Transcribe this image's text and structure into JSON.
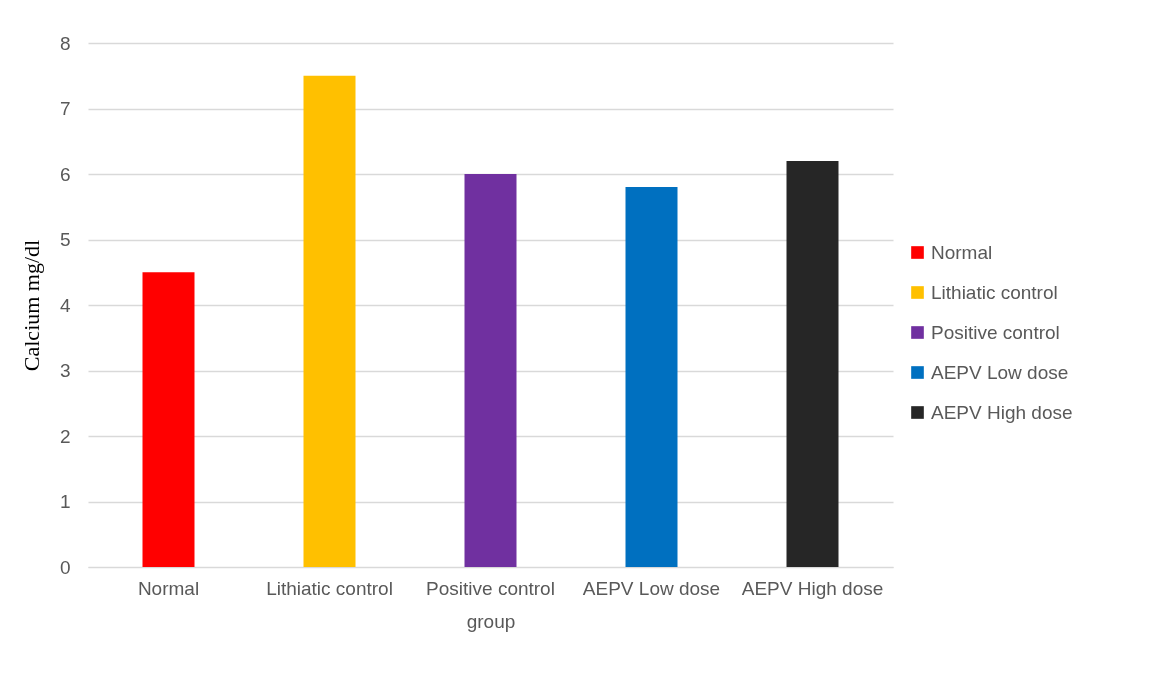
{
  "chart_data": {
    "type": "bar",
    "xlabel": "group",
    "ylabel": "Calcium mg/dl",
    "categories": [
      "Normal",
      "Lithiatic control",
      "Positive control",
      "AEPV Low dose",
      "AEPV High dose"
    ],
    "series": [
      {
        "name": "Normal",
        "color": "#ff0000",
        "values": [
          4.5,
          null,
          null,
          null,
          null
        ]
      },
      {
        "name": "Lithiatic control",
        "color": "#ffc000",
        "values": [
          null,
          7.5,
          null,
          null,
          null
        ]
      },
      {
        "name": "Positive control",
        "color": "#7030a0",
        "values": [
          null,
          null,
          6.0,
          null,
          null
        ]
      },
      {
        "name": "AEPV Low dose",
        "color": "#0070c0",
        "values": [
          null,
          null,
          null,
          5.8,
          null
        ]
      },
      {
        "name": "AEPV High dose",
        "color": "#262626",
        "values": [
          null,
          null,
          null,
          null,
          6.2
        ]
      }
    ],
    "ylim": [
      0,
      8
    ],
    "yticks": [
      0,
      1,
      2,
      3,
      4,
      5,
      6,
      7,
      8
    ],
    "grid": "y",
    "legend": "right"
  }
}
